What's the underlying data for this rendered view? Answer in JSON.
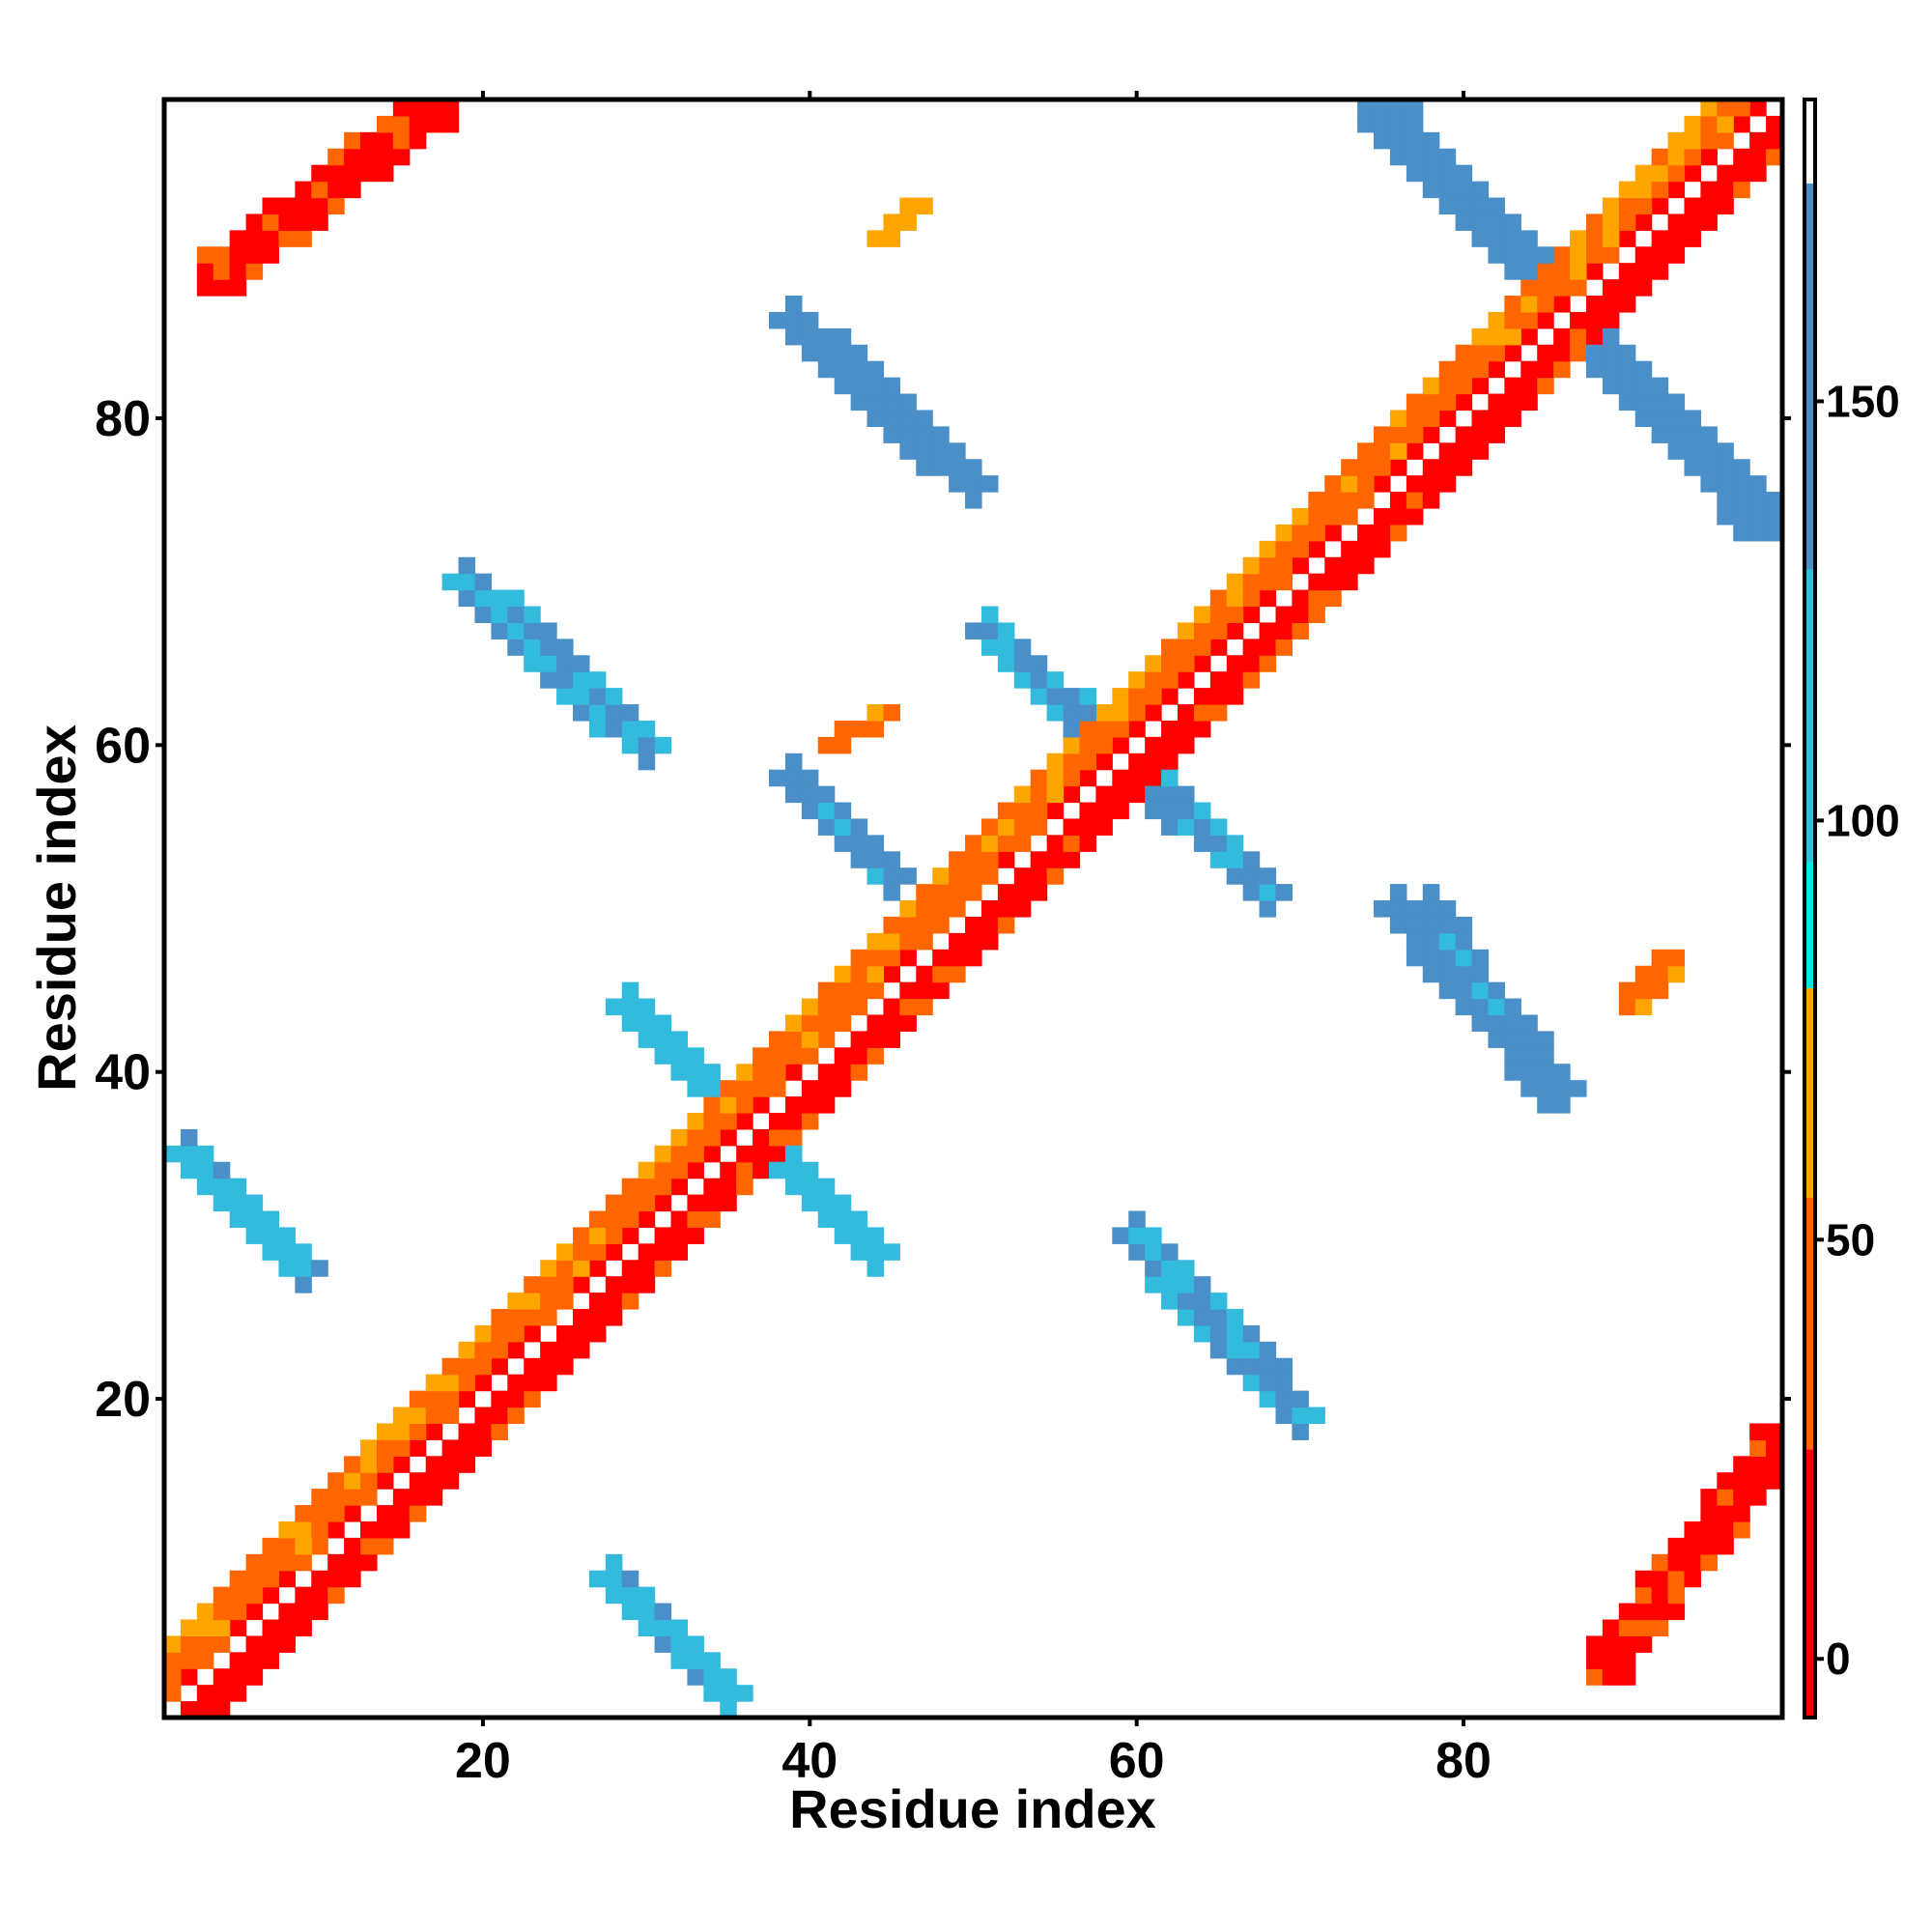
{
  "chart_data": {
    "type": "heatmap",
    "title": "",
    "xlabel": "Residue index",
    "ylabel": "Residue index",
    "xlim": [
      1,
      99
    ],
    "ylim": [
      1,
      99
    ],
    "x_ticks": [
      20,
      40,
      60,
      80
    ],
    "y_ticks": [
      20,
      40,
      60,
      80
    ],
    "x_tick_labels": [
      "20",
      "40",
      "60",
      "80"
    ],
    "y_tick_labels": [
      "20",
      "40",
      "60",
      "80"
    ],
    "colorbar": {
      "range": [
        -7,
        186
      ],
      "ticks": [
        0,
        50,
        100,
        150
      ],
      "tick_labels": [
        "0",
        "50",
        "100",
        "150"
      ],
      "color_stops": [
        {
          "min": -7,
          "max": 25,
          "color": "#ff0000"
        },
        {
          "min": 25,
          "max": 55,
          "color": "#ff6600"
        },
        {
          "min": 55,
          "max": 80,
          "color": "#ffa500"
        },
        {
          "min": 80,
          "max": 95,
          "color": "#00e5ee"
        },
        {
          "min": 95,
          "max": 130,
          "color": "#33bbdd"
        },
        {
          "min": 130,
          "max": 176,
          "color": "#4a8fc8"
        },
        {
          "min": 176,
          "max": 186,
          "color": "#ffffff"
        }
      ]
    },
    "regions": [
      {
        "desc": "main diagonal band",
        "value": 12,
        "points": [
          [
            2,
            1
          ],
          [
            99,
            98
          ]
        ],
        "width": 3.5
      },
      {
        "desc": "main diagonal band outer",
        "value": 42,
        "points": [
          [
            1,
            2
          ],
          [
            98,
            99
          ]
        ],
        "width": 5
      },
      {
        "desc": "parallel upper-left strand",
        "value": 15,
        "points": [
          [
            4,
            89
          ],
          [
            17,
            99
          ]
        ],
        "width": 3
      },
      {
        "desc": "parallel lower-right strand",
        "value": 15,
        "points": [
          [
            89,
            4
          ],
          [
            99,
            17
          ]
        ],
        "width": 3
      },
      {
        "desc": "antiparallel upper-right",
        "value": 150,
        "points": [
          [
            75,
            99
          ],
          [
            98,
            74
          ]
        ],
        "width": 3
      },
      {
        "desc": "antiparallel hairpin A",
        "value": 125,
        "points": [
          [
            19,
            70
          ],
          [
            30,
            60
          ]
        ],
        "width": 2.6
      },
      {
        "desc": "antiparallel hairpin A mirror",
        "value": 125,
        "points": [
          [
            60,
            30
          ],
          [
            70,
            19
          ]
        ],
        "width": 2.6
      },
      {
        "desc": "antiparallel hairpin B",
        "value": 140,
        "points": [
          [
            39,
            86
          ],
          [
            50,
            76
          ]
        ],
        "width": 2.6
      },
      {
        "desc": "antiparallel hairpin B mirror",
        "value": 140,
        "points": [
          [
            76,
            50
          ],
          [
            86,
            39
          ]
        ],
        "width": 2.6
      },
      {
        "desc": "cross near 35",
        "value": 110,
        "points": [
          [
            29,
            44
          ],
          [
            44,
            29
          ]
        ],
        "width": 2.4
      },
      {
        "desc": "cross near 58",
        "value": 130,
        "points": [
          [
            51,
            67
          ],
          [
            68,
            51
          ]
        ],
        "width": 2.4
      },
      {
        "desc": "block lower-left",
        "value": 120,
        "points": [
          [
            2,
            35
          ],
          [
            9,
            28
          ]
        ],
        "width": 2.8
      },
      {
        "desc": "block lower-left mirror",
        "value": 120,
        "points": [
          [
            28,
            9
          ],
          [
            35,
            2
          ]
        ],
        "width": 2.8
      },
      {
        "desc": "block mid-right",
        "value": 135,
        "points": [
          [
            78,
            50
          ],
          [
            85,
            39
          ]
        ],
        "width": 2.4
      },
      {
        "desc": "block mid-left",
        "value": 135,
        "points": [
          [
            39,
            58
          ],
          [
            45,
            52
          ]
        ],
        "width": 2.2
      },
      {
        "desc": "orange patch top",
        "value": 55,
        "points": [
          [
            44,
            91
          ],
          [
            47,
            93
          ]
        ],
        "width": 1.6
      },
      {
        "desc": "orange patch mid",
        "value": 48,
        "points": [
          [
            41,
            60
          ],
          [
            45,
            62
          ]
        ],
        "width": 1.6
      },
      {
        "desc": "orange patch right",
        "value": 48,
        "points": [
          [
            90,
            44
          ],
          [
            93,
            47
          ]
        ],
        "width": 1.6
      }
    ]
  }
}
